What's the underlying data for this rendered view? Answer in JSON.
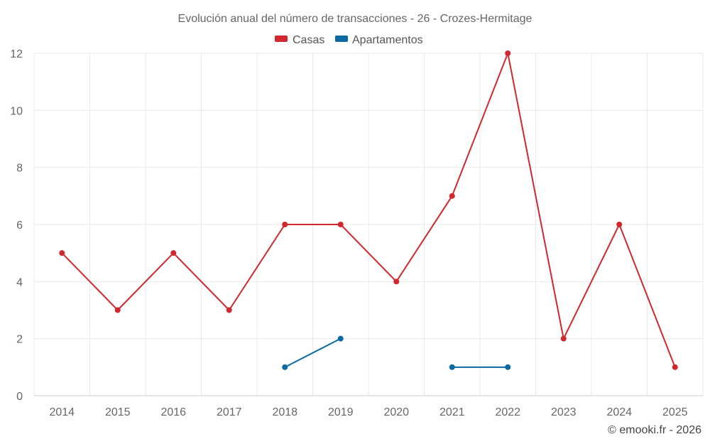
{
  "chart_data": {
    "type": "line",
    "title": "Evolución anual del número de transacciones - 26 - Crozes-Hermitage",
    "categories": [
      "2014",
      "2015",
      "2016",
      "2017",
      "2018",
      "2019",
      "2020",
      "2021",
      "2022",
      "2023",
      "2024",
      "2025"
    ],
    "series": [
      {
        "name": "Casas",
        "color": "#d0282e",
        "values": [
          5,
          3,
          5,
          3,
          6,
          6,
          4,
          7,
          12,
          2,
          6,
          1
        ]
      },
      {
        "name": "Apartamentos",
        "color": "#0a6aa1",
        "values": [
          null,
          null,
          null,
          null,
          1,
          2,
          null,
          1,
          1,
          null,
          null,
          null
        ]
      }
    ],
    "ylim": [
      0,
      12
    ],
    "yticks": [
      0,
      2,
      4,
      6,
      8,
      10,
      12
    ],
    "xlabel": "",
    "ylabel": "",
    "grid": true,
    "legend": "top-center"
  },
  "credit": "© emooki.fr - 2026"
}
